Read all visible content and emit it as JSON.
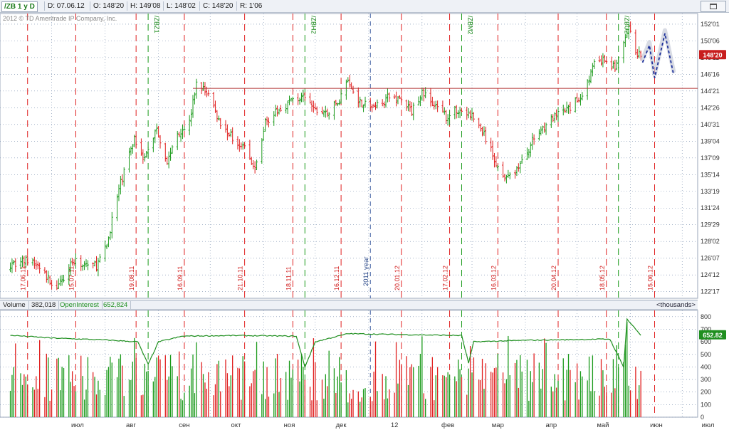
{
  "header": {
    "symbol": "/ZB 1 y D",
    "date": "D: 07.06.12",
    "open": "O: 148'20",
    "high": "H: 149'08",
    "low": "L: 148'02",
    "close": "C: 148'20",
    "range": "R: 1'06"
  },
  "copyright": "2012 © TD Ameritrade IP Company, Inc.",
  "price_pane": {
    "y_ticks": [
      "152'01",
      "150'06",
      "148'11",
      "146'16",
      "144'21",
      "142'26",
      "140'31",
      "139'04",
      "137'09",
      "135'14",
      "133'19",
      "131'24",
      "129'29",
      "128'02",
      "126'07",
      "124'12",
      "122'17"
    ],
    "y_values": [
      152.03125,
      150.1875,
      148.34375,
      146.5,
      144.65625,
      142.8125,
      140.96875,
      139.125,
      137.28125,
      135.4375,
      133.59375,
      131.75,
      129.90625,
      128.0625,
      126.21875,
      124.375,
      122.53125
    ],
    "current_price_label": "148'20",
    "current_price": 148.625,
    "horizontal_level": 144.95,
    "red_date_labels": [
      "17.06.11",
      "15.07.11",
      "19.08.11",
      "16.09.11",
      "21.10.11",
      "18.11.11",
      "16.12.11",
      "20.01.12",
      "17.02.12",
      "16.03.12",
      "20.04.12",
      "18.05.12",
      "15.06.12"
    ],
    "contract_labels": [
      "/ZBU1",
      "/ZBZ1",
      "/ZBH2",
      "/ZBM2",
      "/ZBU2"
    ],
    "year_label": "2011 year"
  },
  "volume_pane": {
    "volume_label": "Volume",
    "volume_value": "382,018",
    "oi_label": "OpenInterest",
    "oi_value": "652,824",
    "units_label": "<thousands>",
    "y_ticks": [
      "800",
      "700",
      "600",
      "500",
      "400",
      "300",
      "200",
      "100",
      "0"
    ],
    "oi_current_label": "652.82"
  },
  "x_axis": {
    "labels": [
      "июл",
      "авг",
      "сен",
      "окт",
      "ноя",
      "дек",
      "12",
      "фев",
      "мар",
      "апр",
      "май",
      "июн",
      "июл"
    ]
  },
  "colors": {
    "up_bar": "#1a9a1a",
    "down_bar": "#e02020",
    "open_interest": "#1f8f1f",
    "forecast": "#1c2f9a",
    "price_badge": "#c81e1e",
    "oi_badge": "#1f8f1f",
    "grid": "#6f86a8"
  },
  "chart_data": {
    "type": "ohlc",
    "title": "/ZB 1 y D",
    "series": [
      {
        "name": "price",
        "anchors": [
          [
            "2011-06-07",
            125.6
          ],
          [
            "2011-06-17",
            126.0
          ],
          [
            "2011-06-24",
            125.2
          ],
          [
            "2011-06-30",
            123.6
          ],
          [
            "2011-07-05",
            123.0
          ],
          [
            "2011-07-12",
            125.8
          ],
          [
            "2011-07-20",
            125.6
          ],
          [
            "2011-07-27",
            125.4
          ],
          [
            "2011-08-02",
            127.5
          ],
          [
            "2011-08-05",
            130.5
          ],
          [
            "2011-08-10",
            134.5
          ],
          [
            "2011-08-18",
            139.5
          ],
          [
            "2011-08-24",
            137.2
          ],
          [
            "2011-08-31",
            140.6
          ],
          [
            "2011-09-06",
            136.8
          ],
          [
            "2011-09-12",
            140.0
          ],
          [
            "2011-09-19",
            141.2
          ],
          [
            "2011-09-23",
            145.5
          ],
          [
            "2011-09-30",
            144.3
          ],
          [
            "2011-10-07",
            141.0
          ],
          [
            "2011-10-14",
            139.5
          ],
          [
            "2011-10-21",
            138.5
          ],
          [
            "2011-10-27",
            135.8
          ],
          [
            "2011-11-02",
            141.3
          ],
          [
            "2011-11-10",
            142.5
          ],
          [
            "2011-11-18",
            143.8
          ],
          [
            "2011-11-25",
            143.8
          ],
          [
            "2011-12-01",
            142.5
          ],
          [
            "2011-12-08",
            142.2
          ],
          [
            "2011-12-15",
            143.6
          ],
          [
            "2011-12-19",
            145.8
          ],
          [
            "2011-12-27",
            143.5
          ],
          [
            "2012-01-04",
            142.8
          ],
          [
            "2012-01-12",
            143.9
          ],
          [
            "2012-01-19",
            143.8
          ],
          [
            "2012-01-26",
            142.4
          ],
          [
            "2012-02-01",
            144.6
          ],
          [
            "2012-02-08",
            143.0
          ],
          [
            "2012-02-15",
            141.8
          ],
          [
            "2012-02-22",
            142.6
          ],
          [
            "2012-03-01",
            141.9
          ],
          [
            "2012-03-08",
            139.8
          ],
          [
            "2012-03-16",
            136.2
          ],
          [
            "2012-03-22",
            135.0
          ],
          [
            "2012-03-30",
            136.8
          ],
          [
            "2012-04-06",
            139.5
          ],
          [
            "2012-04-13",
            141.1
          ],
          [
            "2012-04-20",
            142.0
          ],
          [
            "2012-04-27",
            142.8
          ],
          [
            "2012-05-04",
            144.3
          ],
          [
            "2012-05-11",
            147.6
          ],
          [
            "2012-05-17",
            148.0
          ],
          [
            "2012-05-23",
            147.2
          ],
          [
            "2012-05-31",
            151.4
          ],
          [
            "2012-06-04",
            149.0
          ],
          [
            "2012-06-07",
            148.6
          ]
        ]
      },
      {
        "name": "Volume (thousands)",
        "typical_range": [
          120,
          650
        ],
        "peak": 760
      },
      {
        "name": "OpenInterest (thousands)",
        "anchors": [
          [
            "2011-06-07",
            652
          ],
          [
            "2011-07-01",
            630
          ],
          [
            "2011-08-01",
            615
          ],
          [
            "2011-08-20",
            600
          ],
          [
            "2011-08-26",
            420
          ],
          [
            "2011-09-01",
            600
          ],
          [
            "2011-09-15",
            645
          ],
          [
            "2011-10-15",
            650
          ],
          [
            "2011-11-20",
            645
          ],
          [
            "2011-11-25",
            400
          ],
          [
            "2011-12-01",
            600
          ],
          [
            "2011-12-20",
            665
          ],
          [
            "2012-02-01",
            655
          ],
          [
            "2012-02-24",
            650
          ],
          [
            "2012-02-28",
            430
          ],
          [
            "2012-03-02",
            600
          ],
          [
            "2012-04-01",
            612
          ],
          [
            "2012-05-01",
            618
          ],
          [
            "2012-05-20",
            622
          ],
          [
            "2012-05-28",
            400
          ],
          [
            "2012-05-30",
            780
          ],
          [
            "2012-06-07",
            652.8
          ]
        ]
      },
      {
        "name": "forecast",
        "points": [
          [
            "2012-06-08",
            147.8
          ],
          [
            "2012-06-12",
            149.7
          ],
          [
            "2012-06-15",
            146.1
          ],
          [
            "2012-06-21",
            151.0
          ],
          [
            "2012-06-26",
            146.5
          ]
        ]
      }
    ],
    "xlim": [
      "2011-06-01",
      "2012-07-10"
    ],
    "ylim": [
      121.8,
      153.2
    ],
    "volume_ylim": [
      0,
      850
    ],
    "vertical_markers": {
      "red_dashed": [
        "2011-06-17",
        "2011-07-15",
        "2011-08-19",
        "2011-09-16",
        "2011-10-21",
        "2011-11-18",
        "2011-12-16",
        "2012-01-20",
        "2012-02-17",
        "2012-03-16",
        "2012-04-20",
        "2012-05-18",
        "2012-06-15"
      ],
      "green_dashed": [
        "2011-08-26",
        "2011-11-25",
        "2012-02-24",
        "2012-05-25"
      ],
      "blue_dashed": [
        "2012-01-02"
      ]
    },
    "grid": true,
    "legend": "none"
  }
}
